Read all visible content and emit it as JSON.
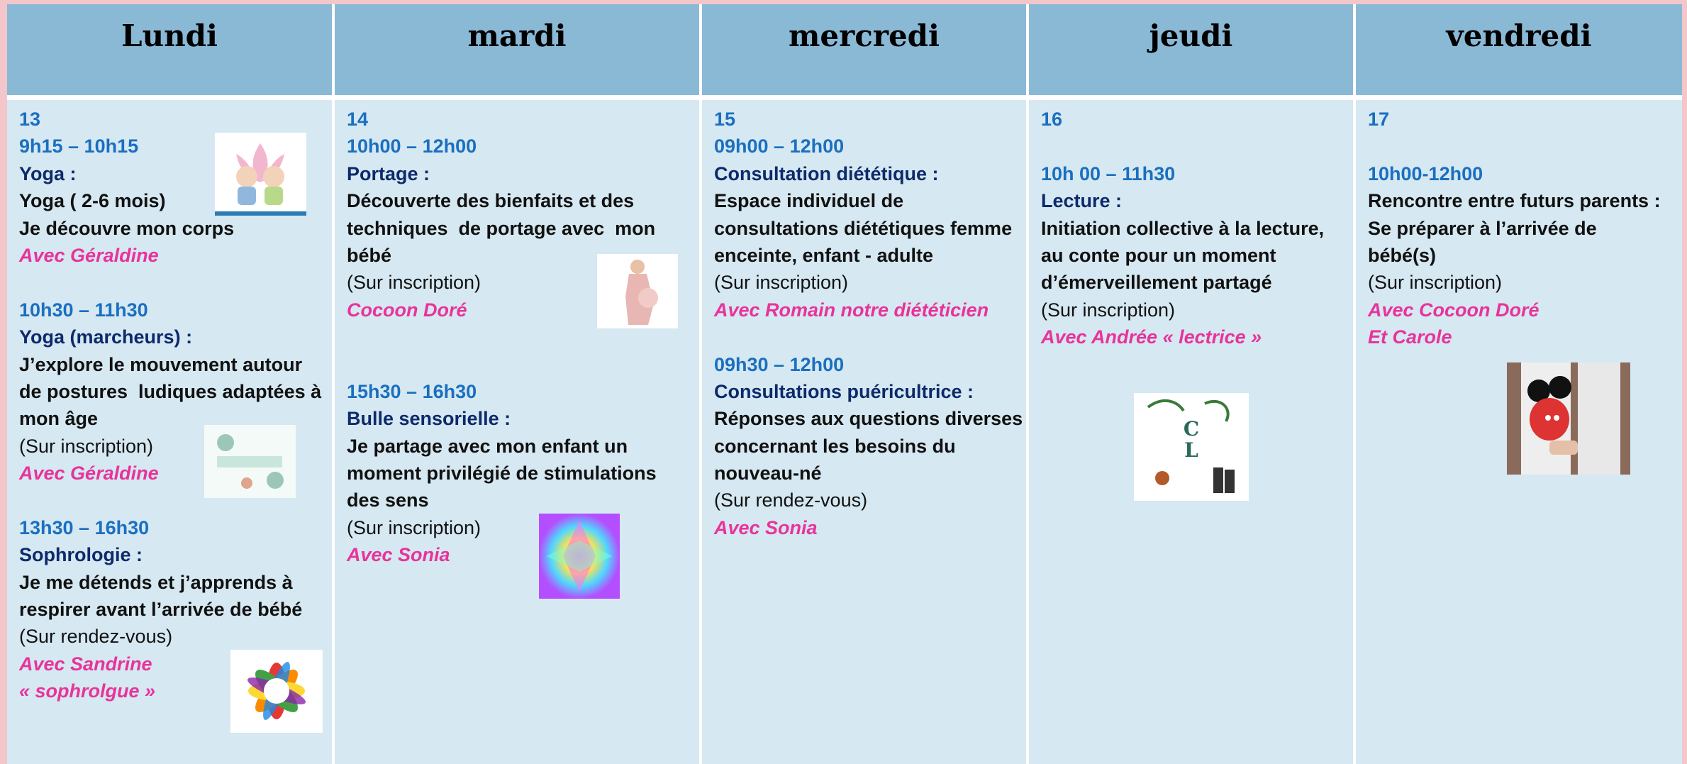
{
  "days": [
    {
      "name": "Lundi",
      "date": "13",
      "sessions": [
        {
          "time": "9h15 – 10h15",
          "title": "Yoga :",
          "description": [
            "Yoga ( 2-6 mois)",
            "Je découvre mon corps"
          ],
          "host": [
            "Avec Géraldine"
          ]
        },
        {
          "time": "10h30 – 11h30",
          "title": "Yoga (marcheurs) :",
          "description": [
            "J’explore le mouvement autour",
            "de postures  ludiques adaptées à",
            "mon âge"
          ],
          "note": "(Sur inscription)",
          "host": [
            "Avec Géraldine"
          ]
        },
        {
          "time": "13h30 – 16h30",
          "title": "Sophrologie :",
          "description": [
            "Je me détends et j’apprends à",
            "respirer avant l’arrivée de bébé"
          ],
          "note": "(Sur rendez-vous)",
          "host": [
            "Avec Sandrine",
            "« sophrolgue »"
          ]
        }
      ]
    },
    {
      "name": "mardi",
      "date": "14",
      "sessions": [
        {
          "time": "10h00 – 12h00",
          "title": "Portage :",
          "description": [
            "Découverte des bienfaits et des",
            "techniques  de portage avec  mon",
            "bébé"
          ],
          "note": "(Sur inscription)",
          "host": [
            "Cocoon Doré"
          ]
        },
        {
          "time": "15h30 – 16h30",
          "title": "Bulle sensorielle :",
          "description": [
            "Je partage avec mon enfant un",
            "moment privilégié de stimulations",
            "des sens"
          ],
          "note": "(Sur inscription)",
          "host": [
            "Avec Sonia"
          ]
        }
      ]
    },
    {
      "name": "mercredi",
      "date": "15",
      "sessions": [
        {
          "time": "09h00 – 12h00",
          "title": "Consultation diététique :",
          "description": [
            "Espace individuel de",
            "consultations diététiques femme",
            "enceinte, enfant - adulte"
          ],
          "note": "(Sur inscription)",
          "host": [
            "Avec Romain notre diététicien"
          ]
        },
        {
          "time": "09h30 – 12h00",
          "title": "Consultations puéricultrice :",
          "description": [
            "Réponses aux questions diverses",
            "concernant les besoins du",
            "nouveau-né"
          ],
          "note": "(Sur rendez-vous)",
          "host": [
            "Avec Sonia"
          ]
        }
      ]
    },
    {
      "name": "jeudi",
      "date": "16",
      "sessions": [
        {
          "time": "10h 00 – 11h30",
          "title": "Lecture :",
          "description": [
            "Initiation collective à la lecture,",
            "au conte pour un moment",
            "d’émerveillement partagé"
          ],
          "note": "(Sur inscription)",
          "host": [
            "Avec Andrée « lectrice »"
          ]
        }
      ]
    },
    {
      "name": "vendredi",
      "date": "17",
      "sessions": [
        {
          "time": "10h00-12h00",
          "description": [
            "Rencontre entre futurs parents :",
            "Se préparer à l’arrivée de",
            "bébé(s)"
          ],
          "note": "(Sur inscription)",
          "host": [
            "Avec Cocoon Doré",
            "Et Carole"
          ]
        }
      ]
    }
  ]
}
